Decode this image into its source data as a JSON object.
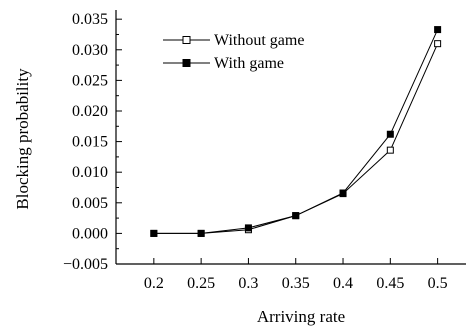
{
  "chart_data": {
    "type": "line",
    "x": [
      0.2,
      0.25,
      0.3,
      0.35,
      0.4,
      0.45,
      0.5
    ],
    "x_tick_labels": [
      "0.2",
      "0.25",
      "0.3",
      "0.35",
      "0.4",
      "0.45",
      "0.5"
    ],
    "xlim": [
      0.16,
      0.53
    ],
    "ylim": [
      -0.005,
      0.0365
    ],
    "y_ticks": [
      -0.005,
      0.0,
      0.005,
      0.01,
      0.015,
      0.02,
      0.025,
      0.03,
      0.035
    ],
    "y_tick_labels": [
      "−0.005",
      "0.000",
      "0.005",
      "0.010",
      "0.015",
      "0.020",
      "0.025",
      "0.030",
      "0.035"
    ],
    "xlabel": "Arriving rate",
    "ylabel": "Blocking probability",
    "grid": false,
    "legend_position": "top-left",
    "series": [
      {
        "name": "Without game",
        "marker": "open-square",
        "values": [
          0.0,
          0.0,
          0.0006,
          0.0029,
          0.0065,
          0.0136,
          0.031
        ]
      },
      {
        "name": "With game",
        "marker": "filled-square",
        "values": [
          0.0,
          0.0,
          0.0009,
          0.0029,
          0.0066,
          0.0162,
          0.0333
        ]
      }
    ]
  }
}
